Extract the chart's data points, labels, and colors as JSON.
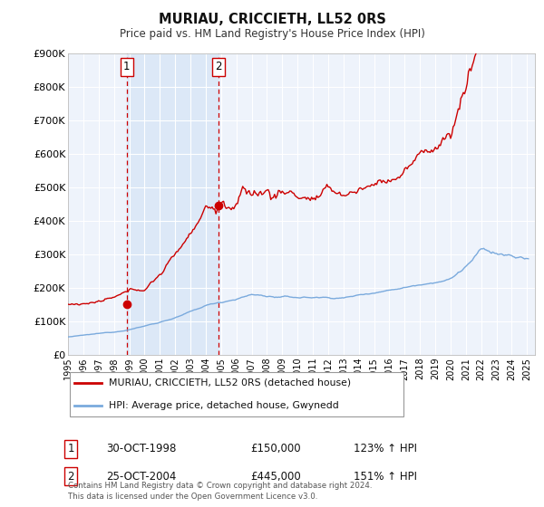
{
  "title": "MURIAU, CRICCIETH, LL52 0RS",
  "subtitle": "Price paid vs. HM Land Registry's House Price Index (HPI)",
  "ylim": [
    0,
    900000
  ],
  "xlim_start": 1995.0,
  "xlim_end": 2025.5,
  "background_color": "#ffffff",
  "plot_bg_color": "#eef3fb",
  "grid_color": "#ffffff",
  "sale1_date_num": 1998.83,
  "sale1_price": 150000,
  "sale2_date_num": 2004.82,
  "sale2_price": 445000,
  "sale1_date_str": "30-OCT-1998",
  "sale2_date_str": "25-OCT-2004",
  "vertical_band_start": 1998.83,
  "vertical_band_end": 2004.82,
  "red_line_color": "#cc0000",
  "blue_line_color": "#7aaadd",
  "marker_color": "#cc0000",
  "vline_color": "#cc0000",
  "band_color": "#dce8f7",
  "legend_label_red": "MURIAU, CRICCIETH, LL52 0RS (detached house)",
  "legend_label_blue": "HPI: Average price, detached house, Gwynedd",
  "footer_text": "Contains HM Land Registry data © Crown copyright and database right 2024.\nThis data is licensed under the Open Government Licence v3.0.",
  "ytick_labels": [
    "£0",
    "£100K",
    "£200K",
    "£300K",
    "£400K",
    "£500K",
    "£600K",
    "£700K",
    "£800K",
    "£900K"
  ],
  "ytick_values": [
    0,
    100000,
    200000,
    300000,
    400000,
    500000,
    600000,
    700000,
    800000,
    900000
  ],
  "xtick_years": [
    1995,
    1996,
    1997,
    1998,
    1999,
    2000,
    2001,
    2002,
    2003,
    2004,
    2005,
    2006,
    2007,
    2008,
    2009,
    2010,
    2011,
    2012,
    2013,
    2014,
    2015,
    2016,
    2017,
    2018,
    2019,
    2020,
    2021,
    2022,
    2023,
    2024,
    2025
  ]
}
